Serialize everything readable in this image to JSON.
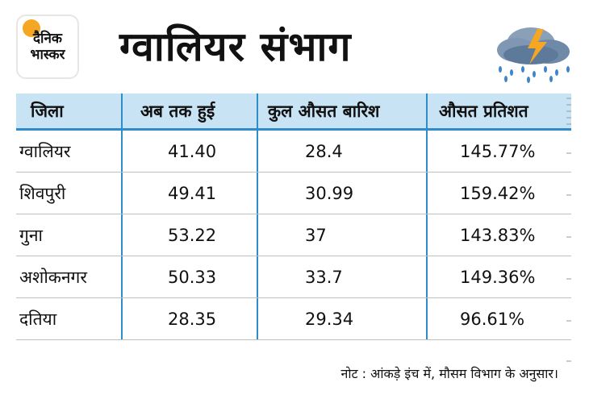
{
  "logo": {
    "line1": "दैनिक",
    "line2": "भास्कर"
  },
  "title": "ग्वालियर संभाग",
  "weather_icon": "storm-cloud-icon",
  "colors": {
    "header_bg": "#c8e3f4",
    "accent": "#2f8ccb",
    "logo_sun": "#f5a623"
  },
  "table": {
    "headers": [
      "जिला",
      "अब तक हुई",
      "कुल औसत बारिश",
      "औसत प्रतिशत"
    ],
    "rows": [
      [
        "ग्वालियर",
        "41.40",
        "28.4",
        "145.77%"
      ],
      [
        "शिवपुरी",
        "49.41",
        "30.99",
        "159.42%"
      ],
      [
        "गुना",
        "53.22",
        "37",
        "143.83%"
      ],
      [
        "अशोकनगर",
        "50.33",
        "33.7",
        "149.36%"
      ],
      [
        "दतिया",
        "28.35",
        "29.34",
        "96.61%"
      ]
    ]
  },
  "note": "नोट : आंकड़े इंच में, मौसम विभाग के अनुसार।"
}
